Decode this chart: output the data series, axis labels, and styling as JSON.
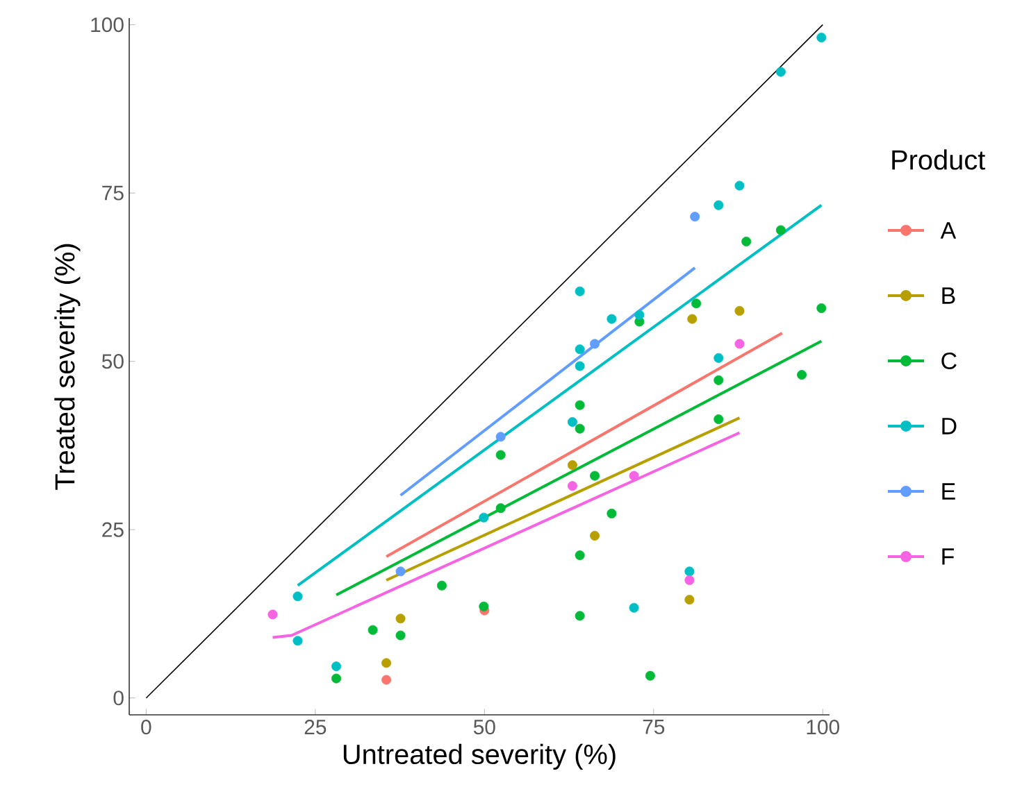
{
  "chart_data": {
    "type": "scatter",
    "xlabel": "Untreated severity (%)",
    "ylabel": "Treated severity (%)",
    "legend_title": "Product",
    "legend": "right",
    "marker": "circle",
    "xlim": [
      -2.5,
      101
    ],
    "ylim": [
      -2.5,
      101
    ],
    "xticks": [
      0,
      25,
      50,
      75,
      100
    ],
    "yticks": [
      0,
      25,
      50,
      75,
      100
    ],
    "series": [
      {
        "type": "line",
        "marker": "none",
        "color": "#000000",
        "x": [
          0,
          100
        ],
        "values": [
          0,
          100
        ]
      },
      {
        "type": "line",
        "marker": "none",
        "color": "#f8766d",
        "x": [
          35.5,
          94.0
        ],
        "values": [
          21.0,
          54.2
        ]
      },
      {
        "type": "line",
        "marker": "none",
        "color": "#b79f00",
        "x": [
          35.5,
          87.7
        ],
        "values": [
          17.5,
          41.6
        ]
      },
      {
        "type": "line",
        "marker": "none",
        "color": "#00ba38",
        "x": [
          28.1,
          99.8
        ],
        "values": [
          15.3,
          53.0
        ]
      },
      {
        "type": "line",
        "marker": "none",
        "color": "#00bfc4",
        "x": [
          22.4,
          99.8
        ],
        "values": [
          16.7,
          73.2
        ]
      },
      {
        "type": "line",
        "marker": "none",
        "color": "#619cff",
        "x": [
          37.6,
          81.1
        ],
        "values": [
          30.1,
          63.9
        ]
      },
      {
        "type": "line",
        "marker": "none",
        "color": "#f564e3",
        "x": [
          18.7,
          21.5,
          87.7
        ],
        "values": [
          9.0,
          9.3,
          39.4
        ]
      },
      {
        "name": "A",
        "color": "#f8766d",
        "x": [
          35.5,
          50.0
        ],
        "values": [
          2.7,
          13.0
        ]
      },
      {
        "name": "B",
        "color": "#b79f00",
        "x": [
          35.5,
          37.6,
          63.0,
          66.3,
          80.7,
          87.7,
          80.3
        ],
        "values": [
          5.2,
          11.8,
          34.6,
          24.1,
          56.3,
          57.5,
          14.6
        ]
      },
      {
        "name": "C",
        "color": "#00ba38",
        "x": [
          28.1,
          33.5,
          37.6,
          43.7,
          49.9,
          52.4,
          52.4,
          64.1,
          64.1,
          66.3,
          68.8,
          64.1,
          64.1,
          74.5,
          72.9,
          81.3,
          88.7,
          93.8,
          99.8,
          96.9,
          84.6,
          84.6
        ],
        "values": [
          2.9,
          10.1,
          9.3,
          16.7,
          13.6,
          36.1,
          28.2,
          43.5,
          40.0,
          33.0,
          27.4,
          21.2,
          12.2,
          3.3,
          55.9,
          58.6,
          67.8,
          69.5,
          57.9,
          48.0,
          47.2,
          41.4
        ]
      },
      {
        "name": "D",
        "color": "#00bfc4",
        "x": [
          22.4,
          22.4,
          28.1,
          49.9,
          64.1,
          64.1,
          64.1,
          63.0,
          68.8,
          72.9,
          72.1,
          99.8,
          93.8,
          87.7,
          84.6,
          84.6,
          80.3
        ],
        "values": [
          15.1,
          8.5,
          4.7,
          26.8,
          60.4,
          51.8,
          49.3,
          41.0,
          56.3,
          56.9,
          13.4,
          98.1,
          93.0,
          76.1,
          73.2,
          50.5,
          18.8
        ]
      },
      {
        "name": "E",
        "color": "#619cff",
        "x": [
          81.1,
          66.3,
          52.4,
          37.6
        ],
        "values": [
          71.5,
          52.6,
          38.8,
          18.8
        ]
      },
      {
        "name": "F",
        "color": "#f564e3",
        "x": [
          18.7,
          63.0,
          72.1,
          87.7,
          80.3
        ],
        "values": [
          12.4,
          31.5,
          33.0,
          52.6,
          17.5
        ]
      }
    ]
  }
}
